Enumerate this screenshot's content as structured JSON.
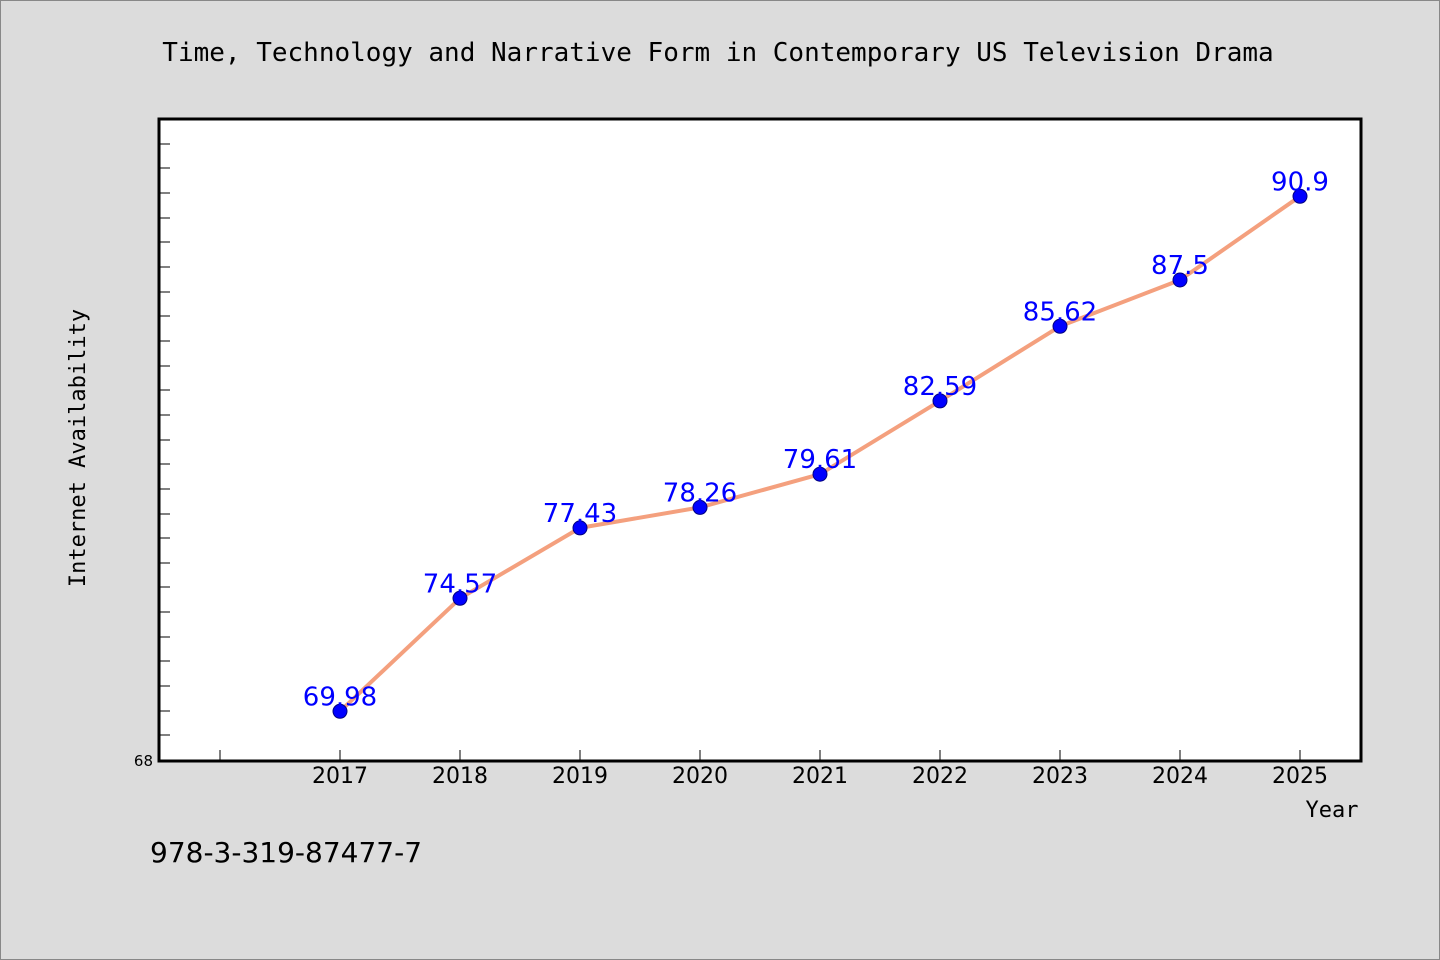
{
  "chart_data": {
    "type": "line",
    "title": "Time, Technology and Narrative Form in Contemporary US Television Drama",
    "xlabel": "Year",
    "ylabel": "Internet Availability",
    "x": [
      "2017",
      "2018",
      "2019",
      "2020",
      "2021",
      "2022",
      "2023",
      "2024",
      "2025"
    ],
    "series": [
      {
        "values": [
          69.98,
          74.57,
          77.43,
          78.26,
          79.61,
          82.59,
          85.62,
          87.5,
          90.9
        ]
      }
    ],
    "data_labels": [
      "69.98",
      "74.57",
      "77.43",
      "78.26",
      "79.61",
      "82.59",
      "85.62",
      "87.5",
      "90.9"
    ],
    "ylim": [
      68,
      94
    ],
    "y_tick_labels": [
      "68"
    ],
    "grid": false,
    "legend": "none",
    "colors": {
      "line": "#f4a07e",
      "marker": "#0000ff",
      "data_label": "#0000ff",
      "plot_background": "#ffffff",
      "page_background": "#dcdcdc"
    }
  },
  "footnote": "978-3-319-87477-7"
}
